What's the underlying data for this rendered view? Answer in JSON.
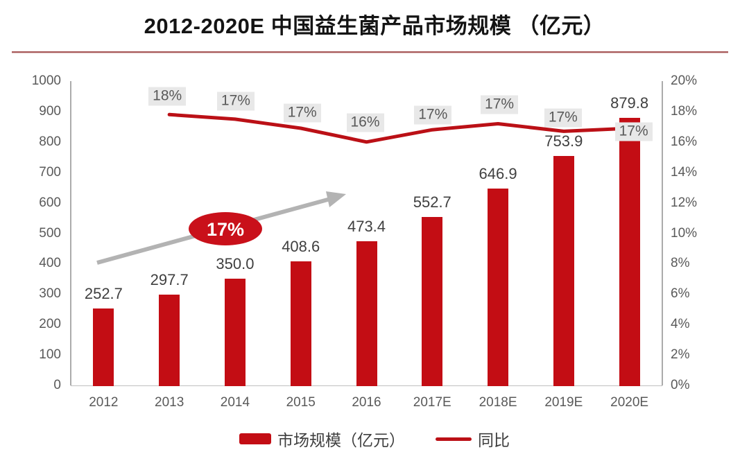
{
  "page": {
    "title": "2012-2020E 中国益生菌产品市场规模 （亿元）"
  },
  "colors": {
    "bar": "#C30D14",
    "line": "#BB1016",
    "ellipse": "#C9101A",
    "arrow": "#B3B3B3",
    "label_bg": "#E8E8E8",
    "axis_text": "#595959",
    "value_text": "#3F3F3F",
    "divider": "#A85A5A"
  },
  "chart_data": {
    "type": "bar",
    "subtype": "combo-bar-line-dual-axis",
    "title": "2012-2020E 中国益生菌产品市场规模 （亿元）",
    "categories": [
      "2012",
      "2013",
      "2014",
      "2015",
      "2016",
      "2017E",
      "2018E",
      "2019E",
      "2020E"
    ],
    "series": [
      {
        "name": "市场规模（亿元）",
        "type": "bar",
        "axis": "left",
        "values": [
          252.7,
          297.7,
          350.0,
          408.6,
          473.4,
          552.7,
          646.9,
          753.9,
          879.8
        ]
      },
      {
        "name": "同比",
        "type": "line",
        "axis": "right",
        "start_index": 1,
        "labels": [
          "18%",
          "17%",
          "17%",
          "16%",
          "17%",
          "17%",
          "17%",
          "17%"
        ],
        "values_estimated_pct": [
          17.8,
          17.5,
          16.9,
          16.0,
          16.8,
          17.2,
          16.7,
          16.9
        ]
      }
    ],
    "left_axis": {
      "min": 0,
      "max": 1000,
      "step": 100,
      "ticks": [
        "0",
        "100",
        "200",
        "300",
        "400",
        "500",
        "600",
        "700",
        "800",
        "900",
        "1000"
      ]
    },
    "right_axis": {
      "min": 0,
      "max": 20,
      "step": 2,
      "ticks": [
        "0%",
        "2%",
        "4%",
        "6%",
        "8%",
        "10%",
        "12%",
        "14%",
        "16%",
        "18%",
        "20%"
      ]
    },
    "grid": "off",
    "legend_position": "bottom",
    "annotations": {
      "trend_ellipse_label": "17%",
      "trend_arrow": "up-right"
    }
  },
  "legend": {
    "items": [
      {
        "label": "市场规模（亿元）",
        "swatch": "bar"
      },
      {
        "label": "同比",
        "swatch": "line"
      }
    ]
  }
}
